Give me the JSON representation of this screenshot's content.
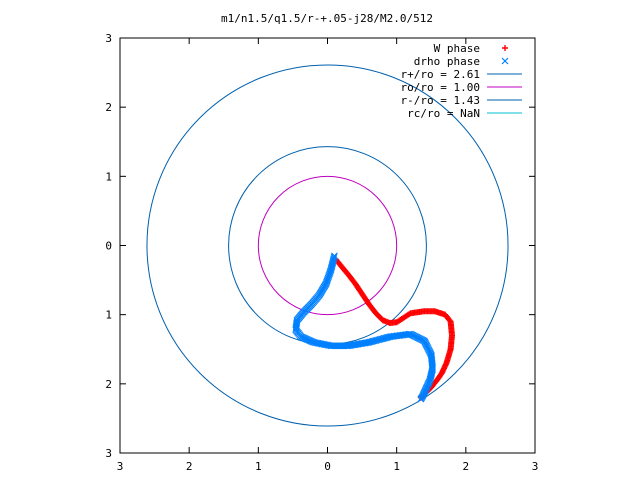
{
  "chart_data": {
    "type": "scatter",
    "title": "m1/n1.5/q1.5/r-+.05-j28/M2.0/512",
    "xlabel": "",
    "ylabel": "",
    "xlim": [
      -3,
      3
    ],
    "ylim": [
      -3,
      3
    ],
    "xtick_values": [
      -3,
      -2,
      -1,
      0,
      1,
      2,
      3
    ],
    "xtick_labels": [
      "3",
      "2",
      "1",
      "0",
      "1",
      "2",
      "3"
    ],
    "ytick_values": [
      3,
      2,
      1,
      0,
      -1,
      -2,
      -3
    ],
    "ytick_labels": [
      "3",
      "2",
      "1",
      "0",
      "1",
      "2",
      "3"
    ],
    "grid": false,
    "legend_position": "top-right",
    "series": [
      {
        "name": "W phase",
        "kind": "points",
        "marker": "+",
        "color": "#ff0000",
        "x": [
          0.12,
          0.2,
          0.3,
          0.4,
          0.5,
          0.6,
          0.7,
          0.8,
          0.9,
          1.0,
          1.2,
          1.4,
          1.55,
          1.7,
          1.78,
          1.8,
          1.78,
          1.72,
          1.65,
          1.58,
          1.5,
          1.42,
          1.35
        ],
        "y": [
          -0.2,
          -0.3,
          -0.42,
          -0.55,
          -0.7,
          -0.85,
          -0.98,
          -1.08,
          -1.12,
          -1.11,
          -0.98,
          -0.95,
          -0.95,
          -1.0,
          -1.1,
          -1.3,
          -1.5,
          -1.7,
          -1.85,
          -1.95,
          -2.05,
          -2.13,
          -2.2
        ]
      },
      {
        "name": "drho phase",
        "kind": "points",
        "marker": "x",
        "color": "#0080ff",
        "x": [
          0.1,
          0.05,
          -0.02,
          -0.12,
          -0.24,
          -0.35,
          -0.44,
          -0.46,
          -0.38,
          -0.2,
          0.05,
          0.3,
          0.6,
          0.9,
          1.2,
          1.4,
          1.5,
          1.52,
          1.48,
          1.42,
          1.38,
          1.35
        ],
        "y": [
          -0.15,
          -0.35,
          -0.55,
          -0.72,
          -0.86,
          -0.97,
          -1.08,
          -1.22,
          -1.32,
          -1.4,
          -1.45,
          -1.45,
          -1.4,
          -1.32,
          -1.28,
          -1.38,
          -1.58,
          -1.78,
          -1.95,
          -2.08,
          -2.17,
          -2.22
        ]
      },
      {
        "name": "r+/ro = 2.61",
        "kind": "circle",
        "radius": 2.61,
        "color": "#0060ad"
      },
      {
        "name": "ro/ro = 1.00",
        "kind": "circle",
        "radius": 1.0,
        "color": "#c000c0"
      },
      {
        "name": "r-/ro = 1.43",
        "kind": "circle",
        "radius": 1.43,
        "color": "#0060ad"
      },
      {
        "name": "rc/ro = NaN",
        "kind": "circle",
        "radius": null,
        "color": "#00bfd0"
      }
    ]
  }
}
